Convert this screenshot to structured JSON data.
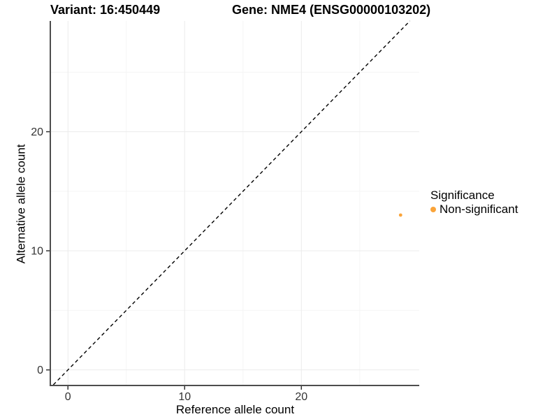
{
  "chart_data": {
    "type": "scatter",
    "titles": {
      "variant": "Variant: 16:450449",
      "gene": "Gene: NME4 (ENSG00000103202)"
    },
    "xlabel": "Reference allele count",
    "ylabel": "Alternative allele count",
    "xlim": [
      -1.45,
      30.1
    ],
    "ylim": [
      -1.25,
      29.3
    ],
    "x_ticks": [
      0,
      10,
      20
    ],
    "y_ticks": [
      0,
      10,
      20
    ],
    "x_minor_ticks": [
      5,
      15,
      25
    ],
    "y_minor_ticks": [
      5,
      15,
      25
    ],
    "grid": true,
    "identity_line": {
      "slope": 1,
      "intercept": 0,
      "style": "dashed",
      "color": "#000000"
    },
    "series": [
      {
        "name": "Non-significant",
        "color": "#FAA43A",
        "points": [
          {
            "x": 28.5,
            "y": 13
          }
        ]
      }
    ],
    "legend": {
      "position": "right",
      "title": "Significance",
      "items": [
        {
          "label": "Non-significant",
          "color": "#FAA43A"
        }
      ]
    },
    "colors": {
      "axis_line": "#4D4D4D",
      "tick_mark": "#333333",
      "tick_text": "#333333",
      "grid_major": "#EBEBEB",
      "grid_minor": "#F5F5F5",
      "background": "#FFFFFF"
    }
  }
}
